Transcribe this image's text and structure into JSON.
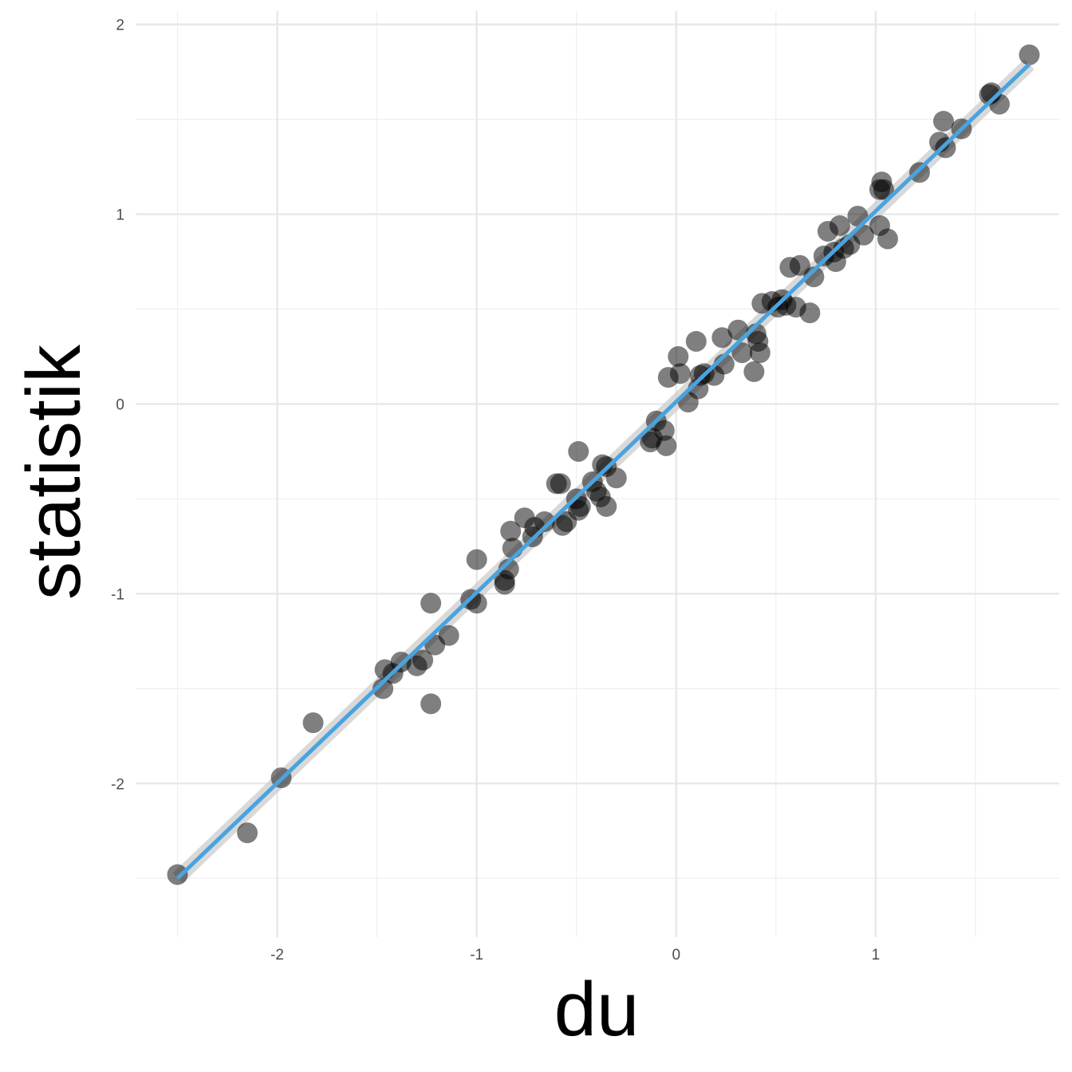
{
  "chart_data": {
    "type": "scatter",
    "title": "",
    "xlabel": "du",
    "ylabel": "statistik",
    "xlim": [
      -2.71,
      1.92
    ],
    "ylim": [
      -2.81,
      2.07
    ],
    "x_ticks": [
      -2,
      -1,
      0,
      1
    ],
    "x_tick_labels": [
      "-2",
      "-1",
      "0",
      "1"
    ],
    "y_ticks": [
      -2,
      -1,
      0,
      1,
      2
    ],
    "y_tick_labels": [
      "-2",
      "-1",
      "0",
      "1",
      "2"
    ],
    "grid": true,
    "legend": "none",
    "colors": {
      "points": "#000000",
      "point_opacity": 0.5,
      "fit_line": "#4aa3df",
      "confidence_band": "#cccccc"
    },
    "fit_line": {
      "x": [
        -2.5,
        1.77
      ],
      "y": [
        -2.5,
        1.79
      ]
    },
    "points": [
      {
        "x": -2.5,
        "y": -2.48
      },
      {
        "x": -2.15,
        "y": -2.26
      },
      {
        "x": -1.98,
        "y": -1.97
      },
      {
        "x": -1.82,
        "y": -1.68
      },
      {
        "x": -1.47,
        "y": -1.5
      },
      {
        "x": -1.46,
        "y": -1.4
      },
      {
        "x": -1.42,
        "y": -1.42
      },
      {
        "x": -1.38,
        "y": -1.36
      },
      {
        "x": -1.3,
        "y": -1.38
      },
      {
        "x": -1.27,
        "y": -1.35
      },
      {
        "x": -1.23,
        "y": -1.05
      },
      {
        "x": -1.23,
        "y": -1.58
      },
      {
        "x": -1.21,
        "y": -1.27
      },
      {
        "x": -1.14,
        "y": -1.22
      },
      {
        "x": -1.03,
        "y": -1.03
      },
      {
        "x": -1.0,
        "y": -0.82
      },
      {
        "x": -1.0,
        "y": -1.05
      },
      {
        "x": -0.86,
        "y": -0.93
      },
      {
        "x": -0.86,
        "y": -0.95
      },
      {
        "x": -0.84,
        "y": -0.87
      },
      {
        "x": -0.83,
        "y": -0.67
      },
      {
        "x": -0.82,
        "y": -0.76
      },
      {
        "x": -0.76,
        "y": -0.6
      },
      {
        "x": -0.72,
        "y": -0.7
      },
      {
        "x": -0.71,
        "y": -0.65
      },
      {
        "x": -0.66,
        "y": -0.62
      },
      {
        "x": -0.6,
        "y": -0.42
      },
      {
        "x": -0.58,
        "y": -0.42
      },
      {
        "x": -0.57,
        "y": -0.64
      },
      {
        "x": -0.55,
        "y": -0.62
      },
      {
        "x": -0.5,
        "y": -0.5
      },
      {
        "x": -0.49,
        "y": -0.56
      },
      {
        "x": -0.49,
        "y": -0.25
      },
      {
        "x": -0.48,
        "y": -0.54
      },
      {
        "x": -0.42,
        "y": -0.41
      },
      {
        "x": -0.4,
        "y": -0.46
      },
      {
        "x": -0.38,
        "y": -0.49
      },
      {
        "x": -0.37,
        "y": -0.32
      },
      {
        "x": -0.35,
        "y": -0.33
      },
      {
        "x": -0.35,
        "y": -0.54
      },
      {
        "x": -0.3,
        "y": -0.39
      },
      {
        "x": -0.13,
        "y": -0.2
      },
      {
        "x": -0.12,
        "y": -0.18
      },
      {
        "x": -0.1,
        "y": -0.09
      },
      {
        "x": -0.06,
        "y": -0.14
      },
      {
        "x": -0.05,
        "y": -0.22
      },
      {
        "x": -0.04,
        "y": 0.14
      },
      {
        "x": 0.01,
        "y": 0.25
      },
      {
        "x": 0.02,
        "y": 0.16
      },
      {
        "x": 0.06,
        "y": 0.01
      },
      {
        "x": 0.1,
        "y": 0.33
      },
      {
        "x": 0.11,
        "y": 0.08
      },
      {
        "x": 0.12,
        "y": 0.15
      },
      {
        "x": 0.14,
        "y": 0.16
      },
      {
        "x": 0.19,
        "y": 0.15
      },
      {
        "x": 0.23,
        "y": 0.35
      },
      {
        "x": 0.24,
        "y": 0.21
      },
      {
        "x": 0.31,
        "y": 0.39
      },
      {
        "x": 0.33,
        "y": 0.27
      },
      {
        "x": 0.39,
        "y": 0.17
      },
      {
        "x": 0.4,
        "y": 0.37
      },
      {
        "x": 0.41,
        "y": 0.33
      },
      {
        "x": 0.42,
        "y": 0.27
      },
      {
        "x": 0.43,
        "y": 0.53
      },
      {
        "x": 0.48,
        "y": 0.54
      },
      {
        "x": 0.51,
        "y": 0.51
      },
      {
        "x": 0.53,
        "y": 0.55
      },
      {
        "x": 0.55,
        "y": 0.52
      },
      {
        "x": 0.57,
        "y": 0.72
      },
      {
        "x": 0.6,
        "y": 0.51
      },
      {
        "x": 0.62,
        "y": 0.73
      },
      {
        "x": 0.67,
        "y": 0.48
      },
      {
        "x": 0.69,
        "y": 0.67
      },
      {
        "x": 0.74,
        "y": 0.78
      },
      {
        "x": 0.76,
        "y": 0.91
      },
      {
        "x": 0.79,
        "y": 0.8
      },
      {
        "x": 0.8,
        "y": 0.75
      },
      {
        "x": 0.82,
        "y": 0.94
      },
      {
        "x": 0.84,
        "y": 0.82
      },
      {
        "x": 0.87,
        "y": 0.84
      },
      {
        "x": 0.91,
        "y": 0.99
      },
      {
        "x": 0.94,
        "y": 0.89
      },
      {
        "x": 1.02,
        "y": 0.94
      },
      {
        "x": 1.02,
        "y": 1.13
      },
      {
        "x": 1.03,
        "y": 1.17
      },
      {
        "x": 1.04,
        "y": 1.13
      },
      {
        "x": 1.06,
        "y": 0.87
      },
      {
        "x": 1.22,
        "y": 1.22
      },
      {
        "x": 1.32,
        "y": 1.38
      },
      {
        "x": 1.34,
        "y": 1.49
      },
      {
        "x": 1.35,
        "y": 1.35
      },
      {
        "x": 1.43,
        "y": 1.45
      },
      {
        "x": 1.57,
        "y": 1.63
      },
      {
        "x": 1.58,
        "y": 1.64
      },
      {
        "x": 1.62,
        "y": 1.58
      },
      {
        "x": 1.77,
        "y": 1.84
      }
    ]
  }
}
